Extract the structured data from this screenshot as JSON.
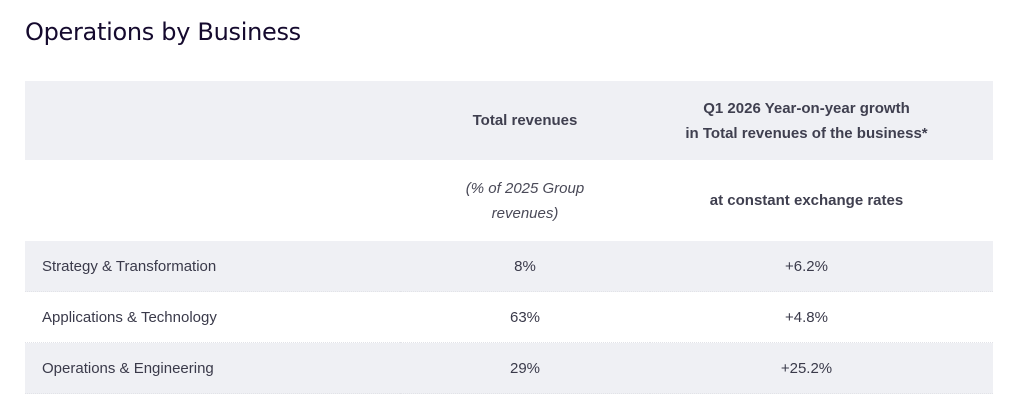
{
  "title": "Operations by Business",
  "table": {
    "header": {
      "col2": "Total revenues",
      "col3_line1": "Q1 2026 Year-on-year growth",
      "col3_line2": "in Total revenues of the business*"
    },
    "subheader": {
      "col2_line1": "(% of 2025 Group",
      "col2_line2": "revenues)",
      "col3": "at constant exchange rates"
    },
    "rows": [
      {
        "label": "Strategy & Transformation",
        "share": "8%",
        "growth": "+6.2%"
      },
      {
        "label": "Applications & Technology",
        "share": "63%",
        "growth": "+4.8%"
      },
      {
        "label": "Operations & Engineering",
        "share": "29%",
        "growth": "+25.2%"
      }
    ]
  }
}
